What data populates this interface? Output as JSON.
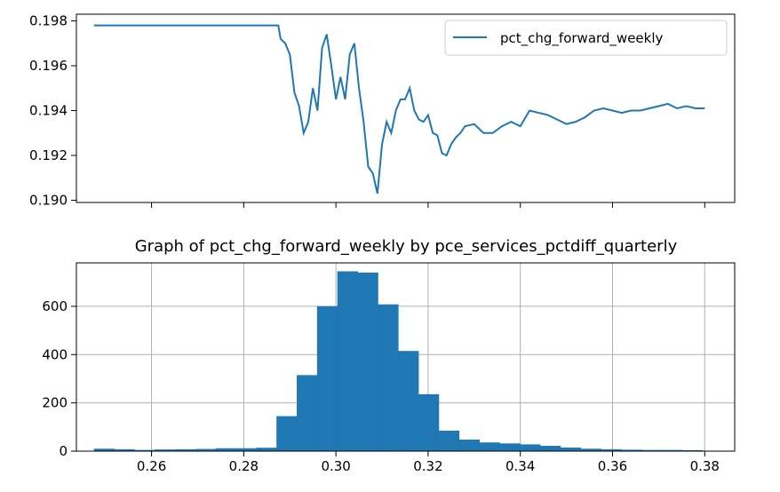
{
  "chart_data": [
    {
      "type": "line",
      "title": "",
      "xlabel": "",
      "ylabel": "",
      "legend_position": "top-right",
      "legend": [
        "pct_chg_forward_weekly"
      ],
      "grid": false,
      "ylim": [
        0.1899,
        0.1983
      ],
      "xlim": [
        0.2437,
        0.3865
      ],
      "yticks": [
        0.19,
        0.192,
        0.194,
        0.196,
        0.198
      ],
      "ytick_labels": [
        "0.190",
        "0.192",
        "0.194",
        "0.196",
        "0.198"
      ],
      "series": [
        {
          "name": "pct_chg_forward_weekly",
          "color": "#1f77b4",
          "x": [
            0.2475,
            0.251,
            0.26,
            0.27,
            0.28,
            0.286,
            0.2875,
            0.288,
            0.289,
            0.29,
            0.291,
            0.292,
            0.293,
            0.294,
            0.295,
            0.296,
            0.297,
            0.298,
            0.299,
            0.3,
            0.301,
            0.302,
            0.303,
            0.304,
            0.305,
            0.306,
            0.307,
            0.308,
            0.309,
            0.31,
            0.311,
            0.312,
            0.313,
            0.314,
            0.315,
            0.316,
            0.317,
            0.318,
            0.319,
            0.32,
            0.321,
            0.322,
            0.323,
            0.324,
            0.325,
            0.326,
            0.327,
            0.328,
            0.33,
            0.332,
            0.334,
            0.336,
            0.338,
            0.34,
            0.342,
            0.344,
            0.346,
            0.348,
            0.35,
            0.352,
            0.354,
            0.356,
            0.358,
            0.36,
            0.362,
            0.364,
            0.366,
            0.368,
            0.37,
            0.372,
            0.374,
            0.376,
            0.378,
            0.38
          ],
          "y": [
            0.1978,
            0.1978,
            0.1978,
            0.1978,
            0.1978,
            0.1978,
            0.1978,
            0.1972,
            0.197,
            0.1965,
            0.1948,
            0.1942,
            0.193,
            0.1935,
            0.195,
            0.194,
            0.1968,
            0.1974,
            0.196,
            0.1945,
            0.1955,
            0.1945,
            0.1965,
            0.197,
            0.195,
            0.1935,
            0.1915,
            0.1912,
            0.1903,
            0.1925,
            0.1935,
            0.193,
            0.194,
            0.1945,
            0.1945,
            0.195,
            0.194,
            0.1936,
            0.1935,
            0.1938,
            0.193,
            0.1929,
            0.1921,
            0.192,
            0.1925,
            0.1928,
            0.193,
            0.1933,
            0.1934,
            0.193,
            0.193,
            0.1933,
            0.1935,
            0.1933,
            0.194,
            0.1939,
            0.1938,
            0.1936,
            0.1934,
            0.1935,
            0.1937,
            0.194,
            0.1941,
            0.194,
            0.1939,
            0.194,
            0.194,
            0.1941,
            0.1942,
            0.1943,
            0.1941,
            0.1942,
            0.1941,
            0.1941
          ]
        }
      ]
    },
    {
      "type": "bar",
      "title": "Graph of pct_chg_forward_weekly by pce_services_pctdiff_quarterly",
      "xlabel": "",
      "ylabel": "",
      "grid": true,
      "xlim": [
        0.2437,
        0.3865
      ],
      "ylim": [
        0,
        780
      ],
      "xticks": [
        0.26,
        0.28,
        0.3,
        0.32,
        0.34,
        0.36,
        0.38
      ],
      "xtick_labels": [
        "0.26",
        "0.28",
        "0.30",
        "0.32",
        "0.34",
        "0.36",
        "0.38"
      ],
      "yticks": [
        0,
        200,
        400,
        600
      ],
      "ytick_labels": [
        "0",
        "200",
        "400",
        "600"
      ],
      "bin_edges": [
        0.2475,
        0.2519,
        0.2563,
        0.2607,
        0.2651,
        0.2695,
        0.2739,
        0.2783,
        0.2827,
        0.2871,
        0.2915,
        0.2959,
        0.3003,
        0.3047,
        0.3091,
        0.3135,
        0.3179,
        0.3223,
        0.3267,
        0.3311,
        0.3355,
        0.3399,
        0.3443,
        0.3487,
        0.3531,
        0.3575,
        0.3619,
        0.3663,
        0.3707,
        0.3751,
        0.3795
      ],
      "values": [
        10,
        8,
        5,
        7,
        8,
        9,
        12,
        12,
        14,
        145,
        315,
        600,
        745,
        740,
        608,
        415,
        236,
        85,
        48,
        36,
        32,
        28,
        22,
        15,
        10,
        8,
        6,
        5,
        5,
        4
      ],
      "color": "#1f77b4"
    }
  ]
}
